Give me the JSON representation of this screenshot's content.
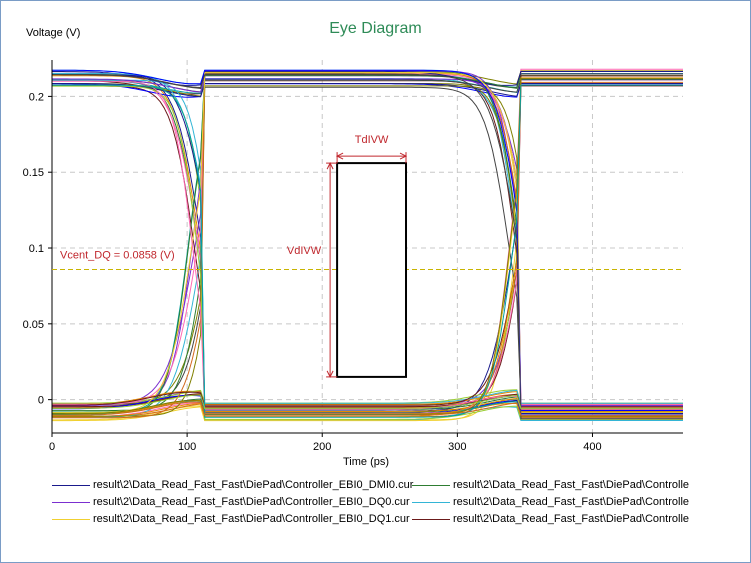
{
  "chart_data": {
    "type": "line",
    "title": "Eye Diagram",
    "xlabel": "Time (ps)",
    "ylabel": "Voltage (V)",
    "xlim": [
      0,
      467
    ],
    "ylim": [
      -0.022,
      0.224
    ],
    "xticks": [
      "0",
      "100",
      "200",
      "300",
      "400"
    ],
    "yticks": [
      "0",
      "0.05",
      "0.1",
      "0.15",
      "0.2"
    ],
    "grid": true,
    "vcent": {
      "label": "Vcent_DQ = 0.0858 (V)",
      "value": 0.0858,
      "color": "#c8b400"
    },
    "mask": {
      "x": [
        211,
        262
      ],
      "y": [
        0.015,
        0.156
      ],
      "time_label": "TdIVW",
      "voltage_label": "VdIVW",
      "annotation_color": "#c0272d"
    },
    "crossings_ps": [
      110,
      345
    ],
    "series": [
      {
        "name": "result\\2\\Data_Read_Fast_Fast\\DiePad\\Controller_EBI0_DMI0.cur",
        "color": "#1a1a8c"
      },
      {
        "name": "result\\2\\Data_Read_Fast_Fast\\DiePad\\Controlle",
        "color": "#2e7d32"
      },
      {
        "name": "result\\2\\Data_Read_Fast_Fast\\DiePad\\Controller_EBI0_DQ0.cur",
        "color": "#7b2fd0"
      },
      {
        "name": "result\\2\\Data_Read_Fast_Fast\\DiePad\\Controlle",
        "color": "#33b5d6"
      },
      {
        "name": "result\\2\\Data_Read_Fast_Fast\\DiePad\\Controller_EBI0_DQ1.cur",
        "color": "#f0d030"
      },
      {
        "name": "result\\2\\Data_Read_Fast_Fast\\DiePad\\Controlle",
        "color": "#6b1a1a"
      }
    ],
    "extra_trace_colors": [
      "#e68a00",
      "#0000ff",
      "#ff69b4",
      "#808000",
      "#00a0a0",
      "#444444",
      "#d2691e",
      "#9acd32"
    ],
    "legend_position": "bottom"
  }
}
